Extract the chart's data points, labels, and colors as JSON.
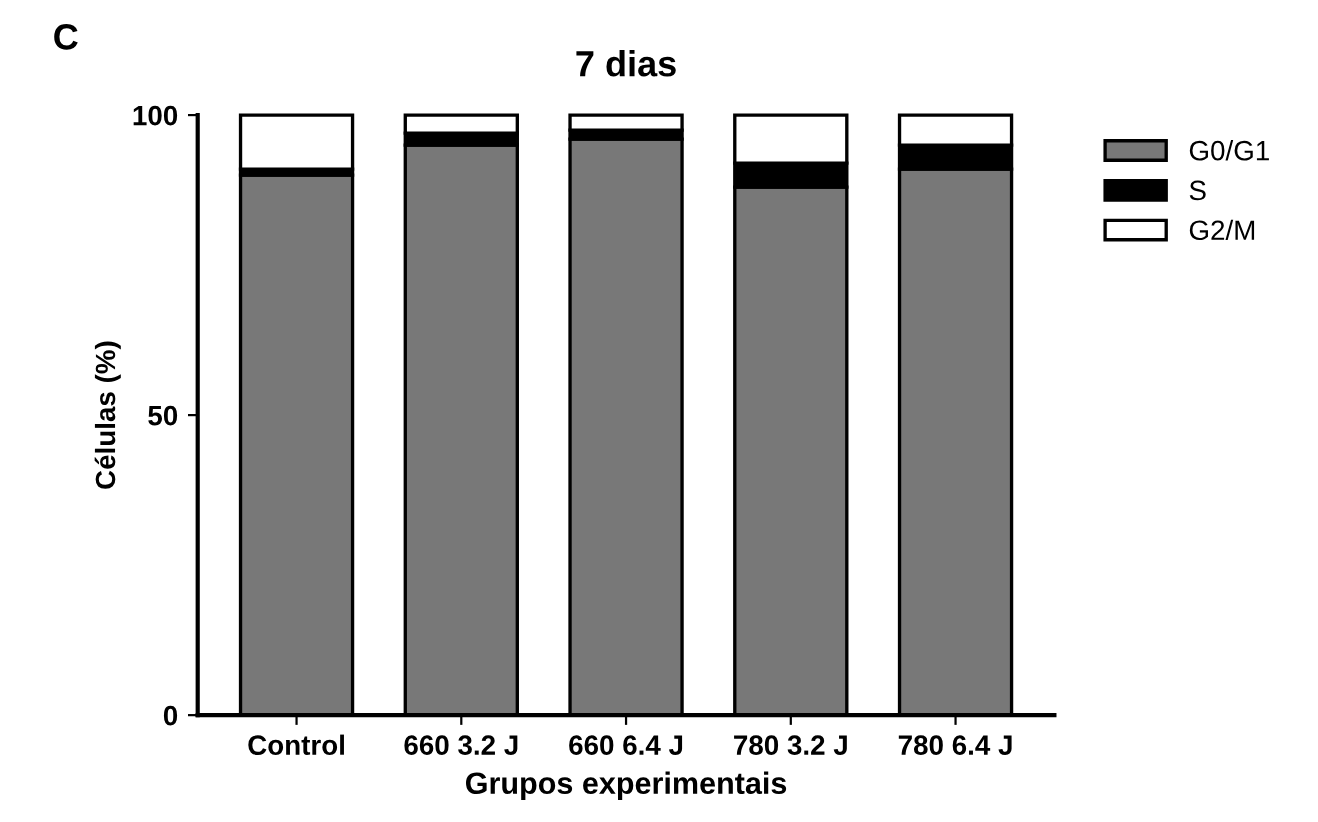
{
  "chart_data": {
    "type": "bar",
    "title": "7 dias",
    "annotations": [
      "C"
    ],
    "xlabel": "Grupos experimentais",
    "ylabel": "Células (%)",
    "categories": [
      "Control",
      "660 3.2 J",
      "660 6.4 J",
      "780 3.2 J",
      "780 6.4 J"
    ],
    "stacked": true,
    "series": [
      {
        "name": "G0/G1",
        "color": "#787878",
        "values": [
          90,
          95,
          96,
          88,
          91
        ]
      },
      {
        "name": "S",
        "color": "#000000",
        "values": [
          1,
          2,
          1.5,
          4,
          4
        ]
      },
      {
        "name": "G2/M",
        "color": "#ffffff",
        "values": [
          9,
          3,
          2.5,
          8,
          5
        ]
      }
    ],
    "ylim": [
      0,
      100
    ],
    "yticks": [
      0,
      50,
      100
    ],
    "grid": false,
    "legend": "top right"
  }
}
